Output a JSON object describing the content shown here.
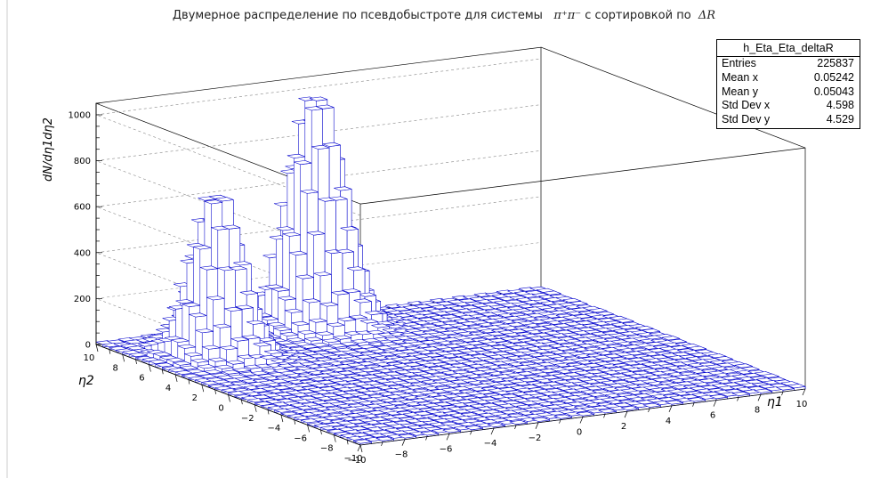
{
  "title": {
    "text_main": "Двумерное распределение по псевдобыстроте для системы",
    "system": "π⁺π⁻",
    "text_sort": "с сортировкой по",
    "variable": "ΔR"
  },
  "stats_box": {
    "name": "h_Eta_Eta_deltaR",
    "rows": [
      {
        "label": "Entries",
        "value": "225837"
      },
      {
        "label": "Mean x",
        "value": "0.05242"
      },
      {
        "label": "Mean y",
        "value": "0.05043"
      },
      {
        "label": "Std Dev x",
        "value": "4.598"
      },
      {
        "label": "Std Dev y",
        "value": "4.529"
      }
    ]
  },
  "colors": {
    "line": "#0000cc",
    "grid": "#888888",
    "axis": "#000000"
  },
  "chart_data": {
    "type": "lego",
    "xlabel": "η1",
    "ylabel": "η2",
    "zlabel": "dN/dη1dη2",
    "xlim": [
      -10,
      10
    ],
    "ylim": [
      -10,
      10
    ],
    "zlim": [
      0,
      1050
    ],
    "x_ticks": [
      -10,
      -8,
      -6,
      -4,
      -2,
      0,
      2,
      4,
      6,
      8,
      10
    ],
    "y_ticks": [
      -10,
      -8,
      -6,
      -4,
      -2,
      0,
      2,
      4,
      6,
      8,
      10
    ],
    "z_ticks": [
      0,
      200,
      400,
      600,
      800,
      1000
    ],
    "grid": true,
    "legend_position": "top-right",
    "peaks": [
      {
        "x": -7.0,
        "y": 6.0,
        "height": 720
      },
      {
        "x": -1.0,
        "y": 8.6,
        "height": 1020
      }
    ],
    "baseline": 8
  }
}
